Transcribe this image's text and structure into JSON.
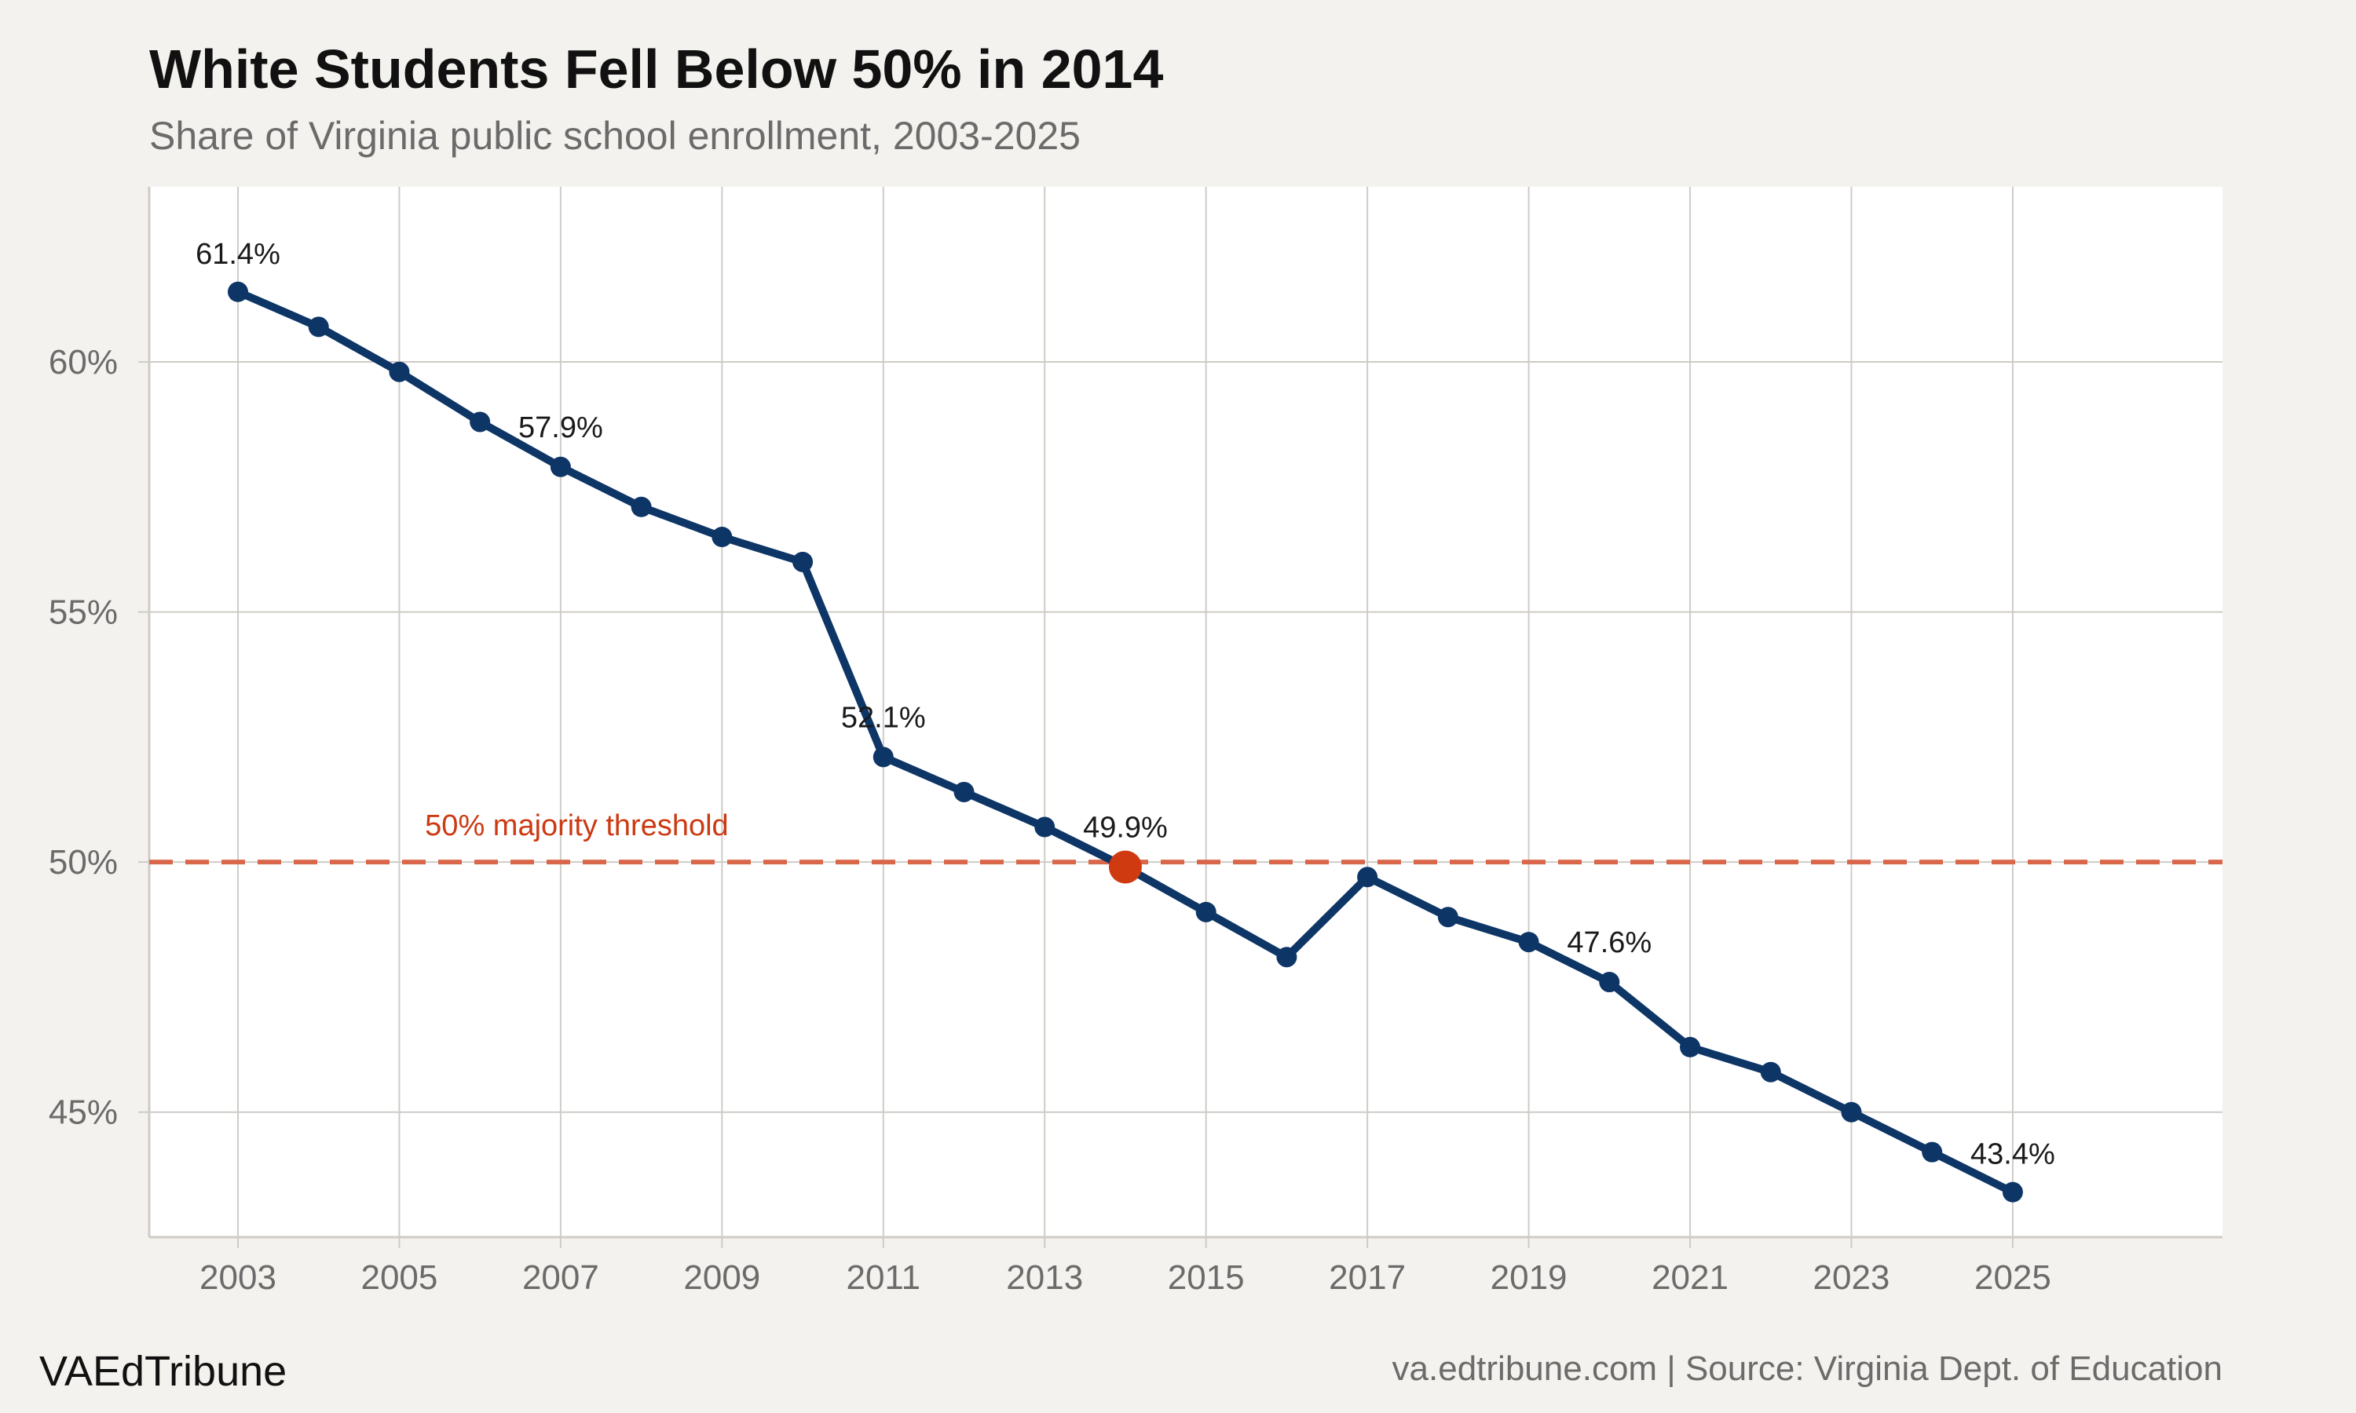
{
  "colors": {
    "background": "#f4f2ee",
    "panel": "#ffffff",
    "grid": "#cfccc6",
    "line": "#0d3566",
    "accent": "#d03a10",
    "threshold": "#d9674b"
  },
  "chart_data": {
    "type": "line",
    "title": "White Students Fell Below 50% in 2014",
    "subtitle": "Share of Virginia public school enrollment, 2003-2025",
    "xlabel": "",
    "ylabel": "",
    "xlim": [
      2001.9,
      2027.6
    ],
    "ylim": [
      42.5,
      63.5
    ],
    "x_ticks": [
      2003,
      2005,
      2007,
      2009,
      2011,
      2013,
      2015,
      2017,
      2019,
      2021,
      2023,
      2025
    ],
    "y_ticks": [
      45,
      50,
      55,
      60
    ],
    "y_tick_labels": [
      "45%",
      "50%",
      "55%",
      "60%"
    ],
    "grid": true,
    "series": [
      {
        "name": "White students",
        "x": [
          2003,
          2004,
          2005,
          2006,
          2007,
          2008,
          2009,
          2010,
          2011,
          2012,
          2013,
          2014,
          2015,
          2016,
          2017,
          2018,
          2019,
          2020,
          2021,
          2022,
          2023,
          2024,
          2025
        ],
        "values": [
          61.4,
          60.7,
          59.8,
          58.8,
          57.9,
          57.1,
          56.5,
          56.0,
          52.1,
          51.4,
          50.7,
          49.9,
          49.0,
          48.1,
          49.7,
          48.9,
          48.4,
          47.6,
          46.3,
          45.8,
          45.0,
          44.2,
          43.4
        ]
      }
    ],
    "data_labels": [
      {
        "x": 2003,
        "y": 61.4,
        "text": "61.4%"
      },
      {
        "x": 2007,
        "y": 57.9,
        "text": "57.9%"
      },
      {
        "x": 2011,
        "y": 52.1,
        "text": "52.1%"
      },
      {
        "x": 2014,
        "y": 49.9,
        "text": "49.9%"
      },
      {
        "x": 2020,
        "y": 47.6,
        "text": "47.6%"
      },
      {
        "x": 2025,
        "y": 43.4,
        "text": "43.4%"
      }
    ],
    "highlight": {
      "x": 2014,
      "y": 49.9
    },
    "reference_line": {
      "y": 50,
      "label": "50% majority threshold"
    }
  },
  "footer": {
    "brand": "VAEdTribune",
    "source": "va.edtribune.com | Source: Virginia Dept. of Education"
  }
}
